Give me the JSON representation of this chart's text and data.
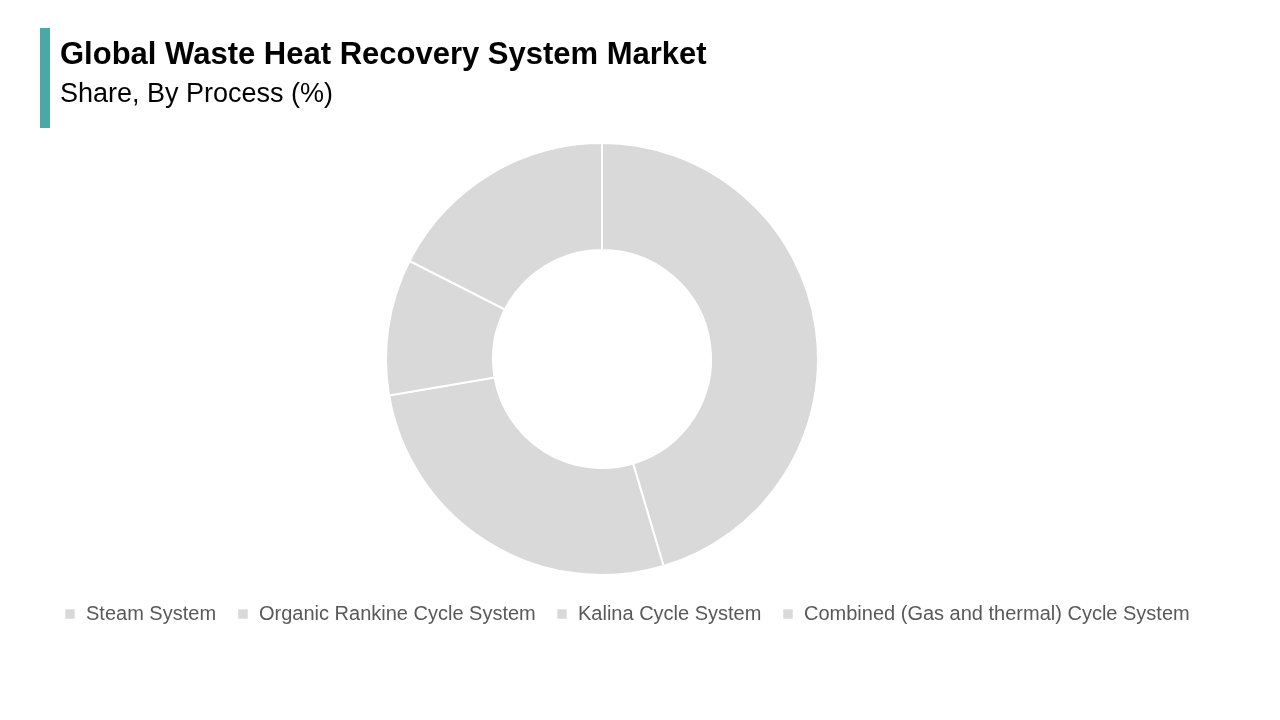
{
  "chart_data": {
    "type": "donut",
    "title": "Global Waste Heat Recovery System Market",
    "subtitle": "Share, By Process (%)",
    "categories": [
      "Steam System",
      "Organic Rankine Cycle System",
      "Kalina Cycle System",
      "Combined (Gas and thermal) Cycle System"
    ],
    "values": [
      45.4,
      26.9,
      10.2,
      17.5
    ],
    "colors": [
      "#d9d9d9",
      "#d9d9d9",
      "#d9d9d9",
      "#d9d9d9"
    ],
    "legend": "bottom"
  }
}
